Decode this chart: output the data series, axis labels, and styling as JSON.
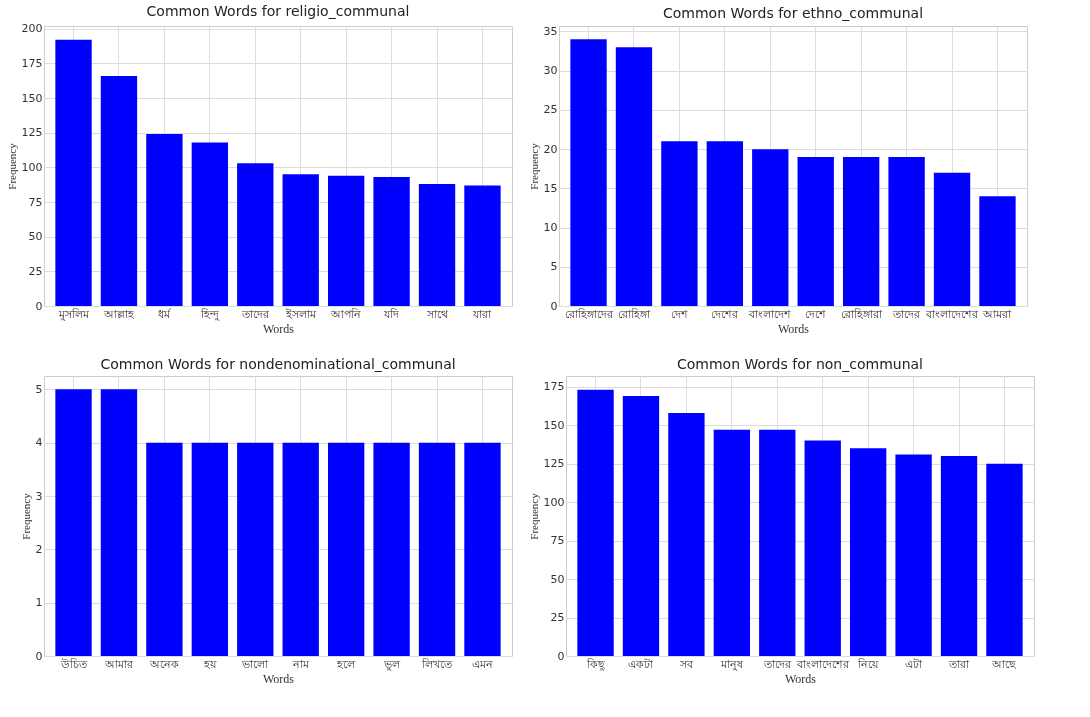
{
  "chart_data": [
    {
      "type": "bar",
      "title": "Common Words for religio_communal",
      "xlabel": "Words",
      "ylabel": "Frequency",
      "categories": [
        "মুসলিম",
        "আল্লাহ",
        "ধর্ম",
        "হিন্দু",
        "তাদের",
        "ইসলাম",
        "আপনি",
        "যদি",
        "সাথে",
        "যারা"
      ],
      "values": [
        192,
        166,
        124,
        118,
        103,
        95,
        94,
        93,
        88,
        87
      ],
      "color": "#0000ff",
      "ylim": [
        0,
        202
      ],
      "yticks": [
        0,
        25,
        50,
        75,
        100,
        125,
        150,
        175,
        200
      ],
      "grid": true
    },
    {
      "type": "bar",
      "title": "Common Words for ethno_communal",
      "xlabel": "Words",
      "ylabel": "Frequency",
      "categories": [
        "রোহিঙ্গাদের",
        "রোহিঙ্গা",
        "দেশ",
        "দেশের",
        "বাংলাদেশ",
        "দেশে",
        "রোহিঙ্গারা",
        "তাদের",
        "বাংলাদেশের",
        "আমরা"
      ],
      "values": [
        34,
        33,
        21,
        21,
        20,
        19,
        19,
        19,
        17,
        14
      ],
      "color": "#0000ff",
      "ylim": [
        0,
        35.7
      ],
      "yticks": [
        0,
        5,
        10,
        15,
        20,
        25,
        30,
        35
      ],
      "grid": true
    },
    {
      "type": "bar",
      "title": "Common Words for nondenominational_communal",
      "xlabel": "Words",
      "ylabel": "Frequency",
      "categories": [
        "উচিত",
        "আমার",
        "অনেক",
        "হয়",
        "ভালো",
        "নাম",
        "হলে",
        "ভুল",
        "লিখতে",
        "এমন"
      ],
      "values": [
        5,
        5,
        4,
        4,
        4,
        4,
        4,
        4,
        4,
        4
      ],
      "color": "#0000ff",
      "ylim": [
        0,
        5.25
      ],
      "yticks": [
        0,
        1,
        2,
        3,
        4,
        5
      ],
      "grid": true
    },
    {
      "type": "bar",
      "title": "Common Words for non_communal",
      "xlabel": "Words",
      "ylabel": "Frequency",
      "categories": [
        "কিছু",
        "একটা",
        "সব",
        "মানুষ",
        "তাদের",
        "বাংলাদেশের",
        "নিয়ে",
        "এটা",
        "তারা",
        "আছে"
      ],
      "values": [
        173,
        169,
        158,
        147,
        147,
        140,
        135,
        131,
        130,
        125
      ],
      "color": "#0000ff",
      "ylim": [
        0,
        182
      ],
      "yticks": [
        0,
        25,
        50,
        75,
        100,
        125,
        150,
        175
      ],
      "grid": true
    }
  ]
}
